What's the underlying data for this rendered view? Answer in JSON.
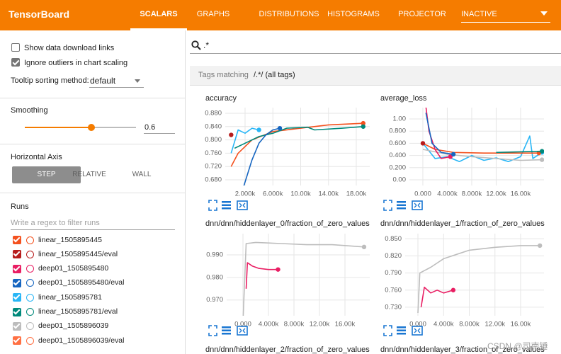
{
  "header": {
    "title": "TensorBoard",
    "tabs": [
      "SCALARS",
      "GRAPHS",
      "DISTRIBUTIONS",
      "HISTOGRAMS",
      "PROJECTOR"
    ],
    "dropdown": "INACTIVE"
  },
  "sidebar": {
    "checkboxes": [
      {
        "label": "Show data download links",
        "checked": false
      },
      {
        "label": "Ignore outliers in chart scaling",
        "checked": true
      }
    ],
    "tooltip_label": "Tooltip sorting method:",
    "tooltip_value": "default",
    "smoothing_label": "Smoothing",
    "smoothing_value": 0.6,
    "axis_label": "Horizontal Axis",
    "axis_options": [
      {
        "label": "STEP",
        "selected": true
      },
      {
        "label": "RELATIVE",
        "selected": false
      },
      {
        "label": "WALL",
        "selected": false
      }
    ],
    "runs_label": "Runs",
    "runs_filter_placeholder": "Write a regex to filter runs",
    "runs": [
      {
        "name": "linear_1505895445",
        "color": "#f4511e",
        "checked": true
      },
      {
        "name": "linear_1505895445/eval",
        "color": "#b71c1c",
        "checked": true
      },
      {
        "name": "deep01_1505895480",
        "color": "#e91e63",
        "checked": true
      },
      {
        "name": "deep01_1505895480/eval",
        "color": "#1565c0",
        "checked": true
      },
      {
        "name": "linear_1505895781",
        "color": "#29b6f6",
        "checked": true
      },
      {
        "name": "linear_1505895781/eval",
        "color": "#00897b",
        "checked": true
      },
      {
        "name": "deep01_1505896039",
        "color": "#bdbdbd",
        "checked": true
      },
      {
        "name": "deep01_1505896039/eval",
        "color": "#ff7043",
        "checked": true
      }
    ]
  },
  "search": ".*",
  "tags_matching": {
    "prefix": "Tags matching",
    "pattern": "/.*/ (all tags)"
  },
  "charts": [
    {
      "type": "line",
      "title": "accuracy",
      "grid": true,
      "xlim": [
        -850,
        19940
      ],
      "ylim": [
        0.663,
        0.897
      ],
      "yticks": [
        {
          "value": 0.88,
          "label": "0.880"
        },
        {
          "value": 0.84,
          "label": "0.840"
        },
        {
          "value": 0.8,
          "label": "0.800"
        },
        {
          "value": 0.76,
          "label": "0.760"
        },
        {
          "value": 0.72,
          "label": "0.720"
        },
        {
          "value": 0.68,
          "label": "0.680"
        }
      ],
      "xticks": [
        {
          "value": 2000,
          "label": "2.000k"
        },
        {
          "value": 6000,
          "label": "6.000k"
        },
        {
          "value": 10000,
          "label": "10.00k"
        },
        {
          "value": 14000,
          "label": "14.00k"
        },
        {
          "value": 18000,
          "label": "18.00k"
        }
      ],
      "series": [
        {
          "color": "#f4511e",
          "x": [
            0,
            1000,
            3000,
            6000,
            10000,
            14000,
            19000
          ],
          "y": [
            0.72,
            0.76,
            0.8,
            0.825,
            0.835,
            0.845,
            0.85
          ]
        },
        {
          "color": "#b71c1c",
          "x": [
            0
          ],
          "y": [
            0.815
          ]
        },
        {
          "color": "#29b6f6",
          "x": [
            0,
            1000,
            2000,
            3000,
            4000
          ],
          "y": [
            0.76,
            0.83,
            0.82,
            0.835,
            0.83
          ]
        },
        {
          "color": "#00897b",
          "x": [
            500,
            2000,
            4000,
            6000,
            8000,
            11000,
            12000,
            16000,
            19000
          ],
          "y": [
            0.775,
            0.79,
            0.81,
            0.82,
            0.835,
            0.838,
            0.83,
            0.835,
            0.84
          ]
        },
        {
          "color": "#1565c0",
          "x": [
            1800,
            3000,
            4000,
            5000,
            6000,
            7000
          ],
          "y": [
            0.66,
            0.74,
            0.79,
            0.815,
            0.83,
            0.835
          ]
        }
      ]
    },
    {
      "type": "line",
      "title": "average_loss",
      "grid": true,
      "xlim": [
        -2200,
        19830
      ],
      "ylim": [
        -0.093,
        1.186
      ],
      "yticks": [
        {
          "value": 1,
          "label": "1.00"
        },
        {
          "value": 0.8,
          "label": "0.800"
        },
        {
          "value": 0.6,
          "label": "0.600"
        },
        {
          "value": 0.4,
          "label": "0.400"
        },
        {
          "value": 0.2,
          "label": "0.200"
        },
        {
          "value": 0,
          "label": "0.00"
        }
      ],
      "xticks": [
        {
          "value": 0,
          "label": "0.000"
        },
        {
          "value": 4000,
          "label": "4.000k"
        },
        {
          "value": 8000,
          "label": "8.000k"
        },
        {
          "value": 12000,
          "label": "12.00k"
        },
        {
          "value": 16000,
          "label": "16.00k"
        }
      ],
      "series": [
        {
          "color": "#29b6f6",
          "x": [
            0,
            2000,
            4000,
            6000,
            8000,
            10000,
            12000,
            14000,
            16000,
            17500,
            18000,
            19500
          ],
          "y": [
            0.6,
            0.35,
            0.38,
            0.3,
            0.4,
            0.32,
            0.36,
            0.3,
            0.38,
            0.72,
            0.35,
            0.45
          ]
        },
        {
          "color": "#bdbdbd",
          "x": [
            0,
            4000,
            8000,
            12000,
            16000,
            19500
          ],
          "y": [
            0.5,
            0.42,
            0.38,
            0.35,
            0.32,
            0.33
          ]
        },
        {
          "color": "#f4511e",
          "x": [
            0,
            2000,
            5000,
            10000,
            19000
          ],
          "y": [
            0.6,
            0.5,
            0.45,
            0.44,
            0.44
          ]
        },
        {
          "color": "#e91e63",
          "x": [
            500,
            1000,
            2000,
            3000,
            4500
          ],
          "y": [
            1.2,
            0.8,
            0.5,
            0.35,
            0.38
          ]
        },
        {
          "color": "#1565c0",
          "x": [
            500,
            1500,
            3000,
            5000
          ],
          "y": [
            1.1,
            0.6,
            0.45,
            0.42
          ]
        },
        {
          "color": "#00897b",
          "x": [
            12000,
            19500
          ],
          "y": [
            0.45,
            0.47
          ]
        },
        {
          "color": "#b71c1c",
          "x": [
            0
          ],
          "y": [
            0.6
          ]
        }
      ]
    },
    {
      "type": "line",
      "title": "dnn/dnn/hiddenlayer_0/fraction_of_zero_values",
      "grid": true,
      "xlim": [
        -2556,
        19890
      ],
      "ylim": [
        0.963,
        0.9994
      ],
      "yticks": [
        {
          "value": 0.99,
          "label": "0.990"
        },
        {
          "value": 0.98,
          "label": "0.980"
        },
        {
          "value": 0.97,
          "label": "0.970"
        }
      ],
      "xticks": [
        {
          "value": 0,
          "label": "0.000"
        },
        {
          "value": 4000,
          "label": "4.000k"
        },
        {
          "value": 8000,
          "label": "8.000k"
        },
        {
          "value": 12000,
          "label": "12.00k"
        },
        {
          "value": 16000,
          "label": "16.00k"
        }
      ],
      "series": [
        {
          "color": "#bdbdbd",
          "x": [
            0,
            500,
            2000,
            6000,
            10000,
            14000,
            19000
          ],
          "y": [
            0.96,
            0.995,
            0.9955,
            0.995,
            0.9945,
            0.9945,
            0.9935
          ]
        },
        {
          "color": "#e91e63",
          "x": [
            500,
            700,
            1500,
            2500,
            4000,
            5500
          ],
          "y": [
            0.975,
            0.9865,
            0.985,
            0.984,
            0.9835,
            0.9835
          ]
        }
      ]
    },
    {
      "type": "line",
      "title": "dnn/dnn/hiddenlayer_1/fraction_of_zero_values",
      "grid": true,
      "xlim": [
        -1986,
        19640
      ],
      "ylim": [
        0.715,
        0.859
      ],
      "yticks": [
        {
          "value": 0.85,
          "label": "0.850"
        },
        {
          "value": 0.82,
          "label": "0.820"
        },
        {
          "value": 0.79,
          "label": "0.790"
        },
        {
          "value": 0.76,
          "label": "0.760"
        },
        {
          "value": 0.73,
          "label": "0.730"
        }
      ],
      "xticks": [
        {
          "value": 0,
          "label": "0.000"
        },
        {
          "value": 4000,
          "label": "4.000k"
        },
        {
          "value": 8000,
          "label": "8.000k"
        },
        {
          "value": 12000,
          "label": "12.00k"
        },
        {
          "value": 16000,
          "label": "16.00k"
        }
      ],
      "series": [
        {
          "color": "#bdbdbd",
          "x": [
            0,
            300,
            2000,
            4000,
            8000,
            12000,
            16000,
            19000
          ],
          "y": [
            0.72,
            0.79,
            0.8,
            0.815,
            0.83,
            0.835,
            0.838,
            0.838
          ]
        },
        {
          "color": "#e91e63",
          "x": [
            500,
            1000,
            2000,
            3000,
            4000,
            5500
          ],
          "y": [
            0.73,
            0.765,
            0.755,
            0.76,
            0.755,
            0.76
          ]
        }
      ]
    },
    {
      "type": "line",
      "title": "dnn/dnn/hiddenlayer_2/fraction_of_zero_values"
    },
    {
      "type": "line",
      "title": "dnn/dnn/hiddenlayer_3/fraction_of_zero_values"
    }
  ],
  "watermark": "CSDN @司南锤"
}
